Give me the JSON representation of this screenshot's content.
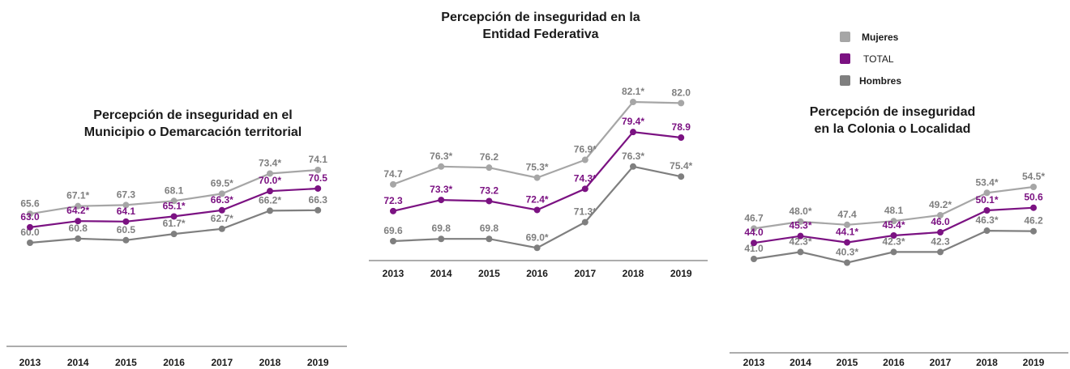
{
  "colors": {
    "mujeres": "#a6a6a6",
    "total": "#7b1282",
    "hombres": "#7f7f7f",
    "label_gray": "#7f7f7f",
    "text": "#1a1a1a"
  },
  "legend": [
    {
      "label": "Mujeres",
      "series": "mujeres"
    },
    {
      "label": "TOTAL",
      "series": "total"
    },
    {
      "label": "Hombres",
      "series": "hombres"
    }
  ],
  "chart_data": [
    {
      "type": "line",
      "title": "Percepción de inseguridad en el Municipio o Demarcación territorial",
      "title_lines": [
        "Percepción de inseguridad en el",
        "Municipio o Demarcación territorial"
      ],
      "categories": [
        "2013",
        "2014",
        "2015",
        "2016",
        "2017",
        "2018",
        "2019"
      ],
      "series": [
        {
          "name": "Mujeres",
          "key": "mujeres",
          "values": [
            65.6,
            67.1,
            67.3,
            68.1,
            69.5,
            73.4,
            74.1
          ],
          "labels": [
            "65.6",
            "67.1*",
            "67.3",
            "68.1",
            "69.5*",
            "73.4*",
            "74.1"
          ]
        },
        {
          "name": "TOTAL",
          "key": "total",
          "values": [
            63.0,
            64.2,
            64.1,
            65.1,
            66.3,
            70.0,
            70.5
          ],
          "labels": [
            "63.0",
            "64.2*",
            "64.1",
            "65.1*",
            "66.3*",
            "70.0*",
            "70.5"
          ]
        },
        {
          "name": "Hombres",
          "key": "hombres",
          "values": [
            60.0,
            60.8,
            60.5,
            61.7,
            62.7,
            66.2,
            66.3
          ],
          "labels": [
            "60.0",
            "60.8",
            "60.5",
            "61.7*",
            "62.7*",
            "66.2*",
            "66.3"
          ]
        }
      ]
    },
    {
      "type": "line",
      "title": "Percepción de inseguridad en la Entidad Federativa",
      "title_lines": [
        "Percepción de inseguridad en la",
        "Entidad Federativa"
      ],
      "categories": [
        "2013",
        "2014",
        "2015",
        "2016",
        "2017",
        "2018",
        "2019"
      ],
      "series": [
        {
          "name": "Mujeres",
          "key": "mujeres",
          "values": [
            74.7,
            76.3,
            76.2,
            75.3,
            76.9,
            82.1,
            82.0
          ],
          "labels": [
            "74.7",
            "76.3*",
            "76.2",
            "75.3*",
            "76.9*",
            "82.1*",
            "82.0"
          ]
        },
        {
          "name": "TOTAL",
          "key": "total",
          "values": [
            72.3,
            73.3,
            73.2,
            72.4,
            74.3,
            79.4,
            78.9
          ],
          "labels": [
            "72.3",
            "73.3*",
            "73.2",
            "72.4*",
            "74.3*",
            "79.4*",
            "78.9"
          ]
        },
        {
          "name": "Hombres",
          "key": "hombres",
          "values": [
            69.6,
            69.8,
            69.8,
            69.0,
            71.3,
            76.3,
            75.4
          ],
          "labels": [
            "69.6",
            "69.8",
            "69.8",
            "69.0*",
            "71.3*",
            "76.3*",
            "75.4*"
          ]
        }
      ]
    },
    {
      "type": "line",
      "title": "Percepción de inseguridad en la Colonia o Localidad",
      "title_lines": [
        "Percepción de inseguridad",
        "en la Colonia o Localidad"
      ],
      "categories": [
        "2013",
        "2014",
        "2015",
        "2016",
        "2017",
        "2018",
        "2019"
      ],
      "series": [
        {
          "name": "Mujeres",
          "key": "mujeres",
          "values": [
            46.7,
            48.0,
            47.4,
            48.1,
            49.2,
            53.4,
            54.5
          ],
          "labels": [
            "46.7",
            "48.0*",
            "47.4",
            "48.1",
            "49.2*",
            "53.4*",
            "54.5*"
          ]
        },
        {
          "name": "TOTAL",
          "key": "total",
          "values": [
            44.0,
            45.3,
            44.1,
            45.4,
            46.0,
            50.1,
            50.6
          ],
          "labels": [
            "44.0",
            "45.3*",
            "44.1*",
            "45.4*",
            "46.0",
            "50.1*",
            "50.6"
          ]
        },
        {
          "name": "Hombres",
          "key": "hombres",
          "values": [
            41.0,
            42.3,
            40.3,
            42.3,
            42.3,
            46.3,
            46.2
          ],
          "labels": [
            "41.0",
            "42.3*",
            "40.3*",
            "42.3*",
            "42.3",
            "46.3*",
            "46.2"
          ]
        }
      ]
    }
  ]
}
